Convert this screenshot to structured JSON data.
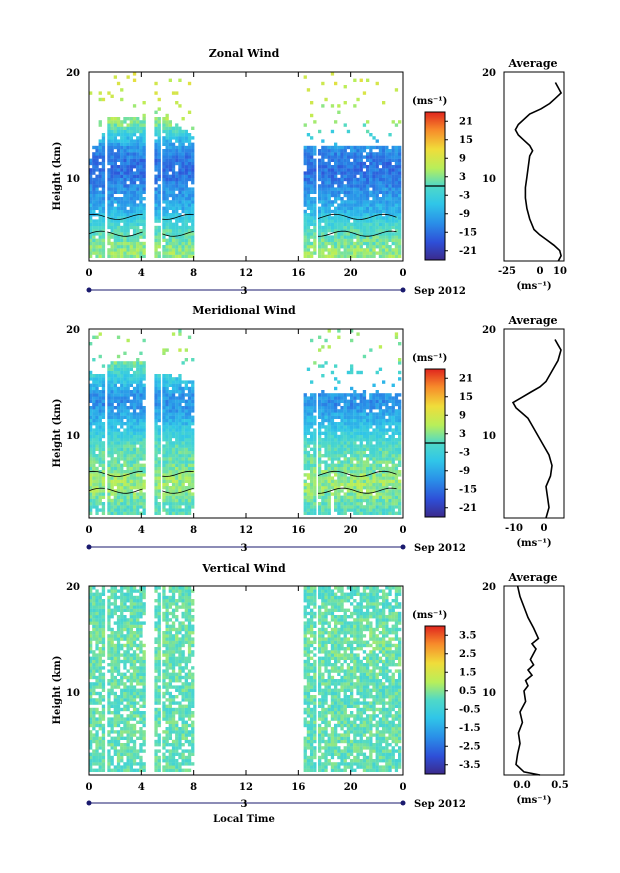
{
  "panels": [
    {
      "id": "zonal",
      "title": "Zonal Wind",
      "ylabel": "Height (km)",
      "y_ticks": [
        "20",
        "10"
      ],
      "x_ticks": [
        "0",
        "4",
        "8",
        "12",
        "16",
        "20",
        "0"
      ],
      "day_label": "3",
      "month_label": "Sep 2012",
      "unit_label": "(ms⁻¹)",
      "colorbar_ticks": [
        "21",
        "15",
        "9",
        "3",
        "-3",
        "-9",
        "-15",
        "-21"
      ],
      "colorbar_range": [
        -24,
        24
      ],
      "zero_contour_value": 0,
      "avg_title": "Average",
      "avg_xlabel": "(ms⁻¹)",
      "avg_x_ticks": [
        "-25",
        "0",
        "10"
      ]
    },
    {
      "id": "meridional",
      "title": "Meridional Wind",
      "ylabel": "Height (km)",
      "y_ticks": [
        "20",
        "10"
      ],
      "x_ticks": [
        "0",
        "4",
        "8",
        "12",
        "16",
        "20",
        "0"
      ],
      "day_label": "3",
      "month_label": "Sep 2012",
      "unit_label": "(ms⁻¹)",
      "colorbar_ticks": [
        "21",
        "15",
        "9",
        "3",
        "-3",
        "-9",
        "-15",
        "-21"
      ],
      "colorbar_range": [
        -24,
        24
      ],
      "zero_contour_value": 0,
      "avg_title": "Average",
      "avg_xlabel": "(ms⁻¹)",
      "avg_x_ticks": [
        "-10",
        "0"
      ]
    },
    {
      "id": "vertical",
      "title": "Vertical Wind",
      "ylabel": "Height (km)",
      "y_ticks": [
        "20",
        "10"
      ],
      "x_ticks": [
        "0",
        "4",
        "8",
        "12",
        "16",
        "20",
        "0"
      ],
      "day_label": "3",
      "month_label": "Sep 2012",
      "unit_label": "(ms⁻¹)",
      "colorbar_ticks": [
        "3.5",
        "2.5",
        "1.5",
        "0.5",
        "-0.5",
        "-1.5",
        "-2.5",
        "-3.5"
      ],
      "colorbar_range": [
        -4,
        4
      ],
      "avg_title": "Average",
      "avg_xlabel": "(ms⁻¹)",
      "avg_x_ticks": [
        "0.0",
        "0.5"
      ]
    }
  ],
  "xaxis_label": "Local Time",
  "chart_data": [
    {
      "type": "heatmap",
      "title": "Zonal Wind",
      "xlabel": "",
      "ylabel": "Height (km)",
      "x_range_hours": [
        0,
        24
      ],
      "ylim": [
        2,
        20
      ],
      "data_intervals_hours": [
        [
          0,
          1.2
        ],
        [
          1.4,
          4.3
        ],
        [
          5.0,
          5.3
        ],
        [
          5.6,
          8.0
        ],
        [
          16.4,
          17.3
        ],
        [
          17.5,
          23.7
        ]
      ],
      "profile_km_ms": [
        [
          3,
          4
        ],
        [
          4,
          2
        ],
        [
          5,
          0
        ],
        [
          6,
          -3
        ],
        [
          7,
          -8
        ],
        [
          8,
          -10
        ],
        [
          9,
          -12
        ],
        [
          10,
          -14
        ],
        [
          11,
          -15
        ],
        [
          12,
          -14
        ],
        [
          13,
          -11
        ],
        [
          14,
          -5
        ],
        [
          15,
          2
        ],
        [
          16,
          5
        ],
        [
          17,
          6
        ],
        [
          18,
          8
        ]
      ],
      "top_km": [
        [
          0,
          12
        ],
        [
          1.2,
          15
        ],
        [
          1.4,
          16
        ],
        [
          4.3,
          16
        ],
        [
          5.0,
          16
        ],
        [
          5.6,
          16
        ],
        [
          8.0,
          14
        ],
        [
          16.4,
          13
        ],
        [
          17.5,
          13
        ],
        [
          23.7,
          13
        ]
      ]
    },
    {
      "type": "line",
      "title": "Average",
      "xlabel": "(ms⁻¹)",
      "ylabel": "",
      "xlim": [
        -30,
        12
      ],
      "ylim": [
        2,
        20
      ],
      "x": [
        8,
        10,
        9,
        5,
        0,
        -5,
        -9,
        -12,
        -14,
        -15,
        -15,
        -14,
        -13,
        -12,
        -10,
        -12,
        -16,
        -20,
        -22,
        -20,
        -12,
        -4,
        2,
        6,
        10,
        8,
        6
      ],
      "y": [
        2,
        2.5,
        3,
        3.5,
        4,
        4.5,
        5,
        6,
        7,
        8,
        9,
        10,
        11,
        12,
        12.5,
        13,
        13.5,
        14,
        14.5,
        15,
        16,
        16.5,
        17,
        17.5,
        18,
        18.5,
        19
      ]
    },
    {
      "type": "heatmap",
      "title": "Meridional Wind",
      "xlabel": "",
      "ylabel": "Height (km)",
      "x_range_hours": [
        0,
        24
      ],
      "ylim": [
        2,
        20
      ],
      "data_intervals_hours": [
        [
          0,
          1.2
        ],
        [
          1.4,
          4.3
        ],
        [
          5.0,
          5.3
        ],
        [
          5.6,
          8.0
        ],
        [
          16.4,
          17.3
        ],
        [
          17.5,
          23.7
        ]
      ],
      "profile_km_ms": [
        [
          3,
          0
        ],
        [
          4,
          2
        ],
        [
          5,
          4
        ],
        [
          6,
          4
        ],
        [
          7,
          2
        ],
        [
          8,
          1
        ],
        [
          9,
          0
        ],
        [
          10,
          -3
        ],
        [
          11,
          -6
        ],
        [
          12,
          -9
        ],
        [
          13,
          -12
        ],
        [
          14,
          -11
        ],
        [
          15,
          -6
        ],
        [
          16,
          -2
        ],
        [
          17,
          2
        ],
        [
          18,
          4
        ]
      ],
      "top_km": [
        [
          0,
          16
        ],
        [
          1.2,
          16
        ],
        [
          1.4,
          17
        ],
        [
          4.3,
          17
        ],
        [
          5.0,
          16
        ],
        [
          5.6,
          16
        ],
        [
          8.0,
          15
        ],
        [
          16.4,
          14
        ],
        [
          17.5,
          14
        ],
        [
          23.7,
          14
        ]
      ]
    },
    {
      "type": "line",
      "title": "Average",
      "xlabel": "(ms⁻¹)",
      "ylabel": "",
      "xlim": [
        -14,
        6
      ],
      "ylim": [
        2,
        20
      ],
      "x": [
        0,
        1,
        0.5,
        0,
        1.5,
        2,
        1,
        -1,
        -3,
        -5,
        -6,
        -8,
        -10,
        -11,
        -8,
        -5,
        -2,
        0,
        2,
        4,
        5,
        4,
        3
      ],
      "y": [
        2,
        3,
        4,
        5,
        6,
        7,
        8,
        9,
        10,
        11,
        11.5,
        12,
        12.5,
        13,
        13.5,
        14,
        14.5,
        15,
        16,
        17,
        18,
        18.5,
        19
      ]
    },
    {
      "type": "heatmap",
      "title": "Vertical Wind",
      "xlabel": "Local Time",
      "ylabel": "Height (km)",
      "x_range_hours": [
        0,
        24
      ],
      "ylim": [
        2,
        20
      ],
      "data_intervals_hours": [
        [
          0,
          1.2
        ],
        [
          1.4,
          4.3
        ],
        [
          5.0,
          5.3
        ],
        [
          5.6,
          8.0
        ],
        [
          16.4,
          17.3
        ],
        [
          17.5,
          23.7
        ]
      ],
      "profile_km_ms": [
        [
          3,
          0.1
        ],
        [
          6,
          0.2
        ],
        [
          9,
          0.1
        ],
        [
          12,
          0.2
        ],
        [
          15,
          0.3
        ],
        [
          18,
          0.1
        ]
      ],
      "top_km": [
        [
          0,
          20
        ],
        [
          23.7,
          20
        ]
      ]
    },
    {
      "type": "line",
      "title": "Average",
      "xlabel": "(ms⁻¹)",
      "ylabel": "",
      "xlim": [
        -0.15,
        0.6
      ],
      "ylim": [
        2,
        20
      ],
      "x": [
        0.3,
        0.1,
        0.0,
        0.02,
        0.05,
        0.03,
        0.08,
        0.05,
        0.12,
        0.1,
        0.15,
        0.12,
        0.2,
        0.15,
        0.22,
        0.18,
        0.25,
        0.2,
        0.28,
        0.22,
        0.15,
        0.1,
        0.05,
        0.02
      ],
      "y": [
        2,
        2.3,
        3,
        4,
        5,
        6,
        7,
        8,
        9,
        10,
        10.5,
        11,
        11.5,
        12,
        12.5,
        13,
        14,
        14.5,
        15,
        16,
        17,
        18,
        19,
        20
      ]
    }
  ]
}
